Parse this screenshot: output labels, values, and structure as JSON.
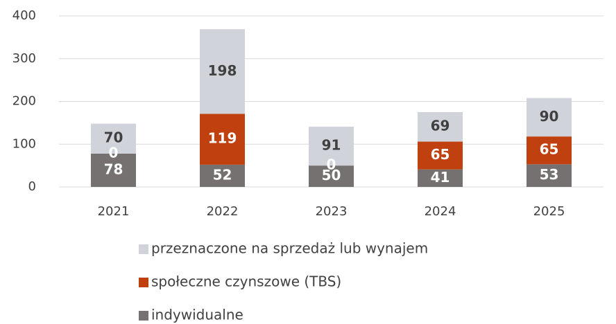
{
  "chart_data": {
    "type": "stacked_bar",
    "categories": [
      "2021",
      "2022",
      "2023",
      "2024",
      "2025"
    ],
    "series": [
      {
        "name": "indywidualne",
        "color": "#767171",
        "label_color": "#ffffff",
        "values": [
          78,
          52,
          50,
          41,
          53
        ]
      },
      {
        "name": "społeczne czynszowe (TBS)",
        "color": "#c0400f",
        "label_color": "#ffffff",
        "values": [
          0,
          119,
          0,
          65,
          65
        ]
      },
      {
        "name": "przeznaczone na sprzedaż lub wynajem",
        "color": "#d0d3da",
        "label_color": "#404040",
        "values": [
          70,
          198,
          91,
          69,
          90
        ]
      }
    ],
    "ylim": [
      0,
      400
    ],
    "yticks": [
      0,
      100,
      200,
      300,
      400
    ],
    "grid": true,
    "legend": "bottom"
  }
}
